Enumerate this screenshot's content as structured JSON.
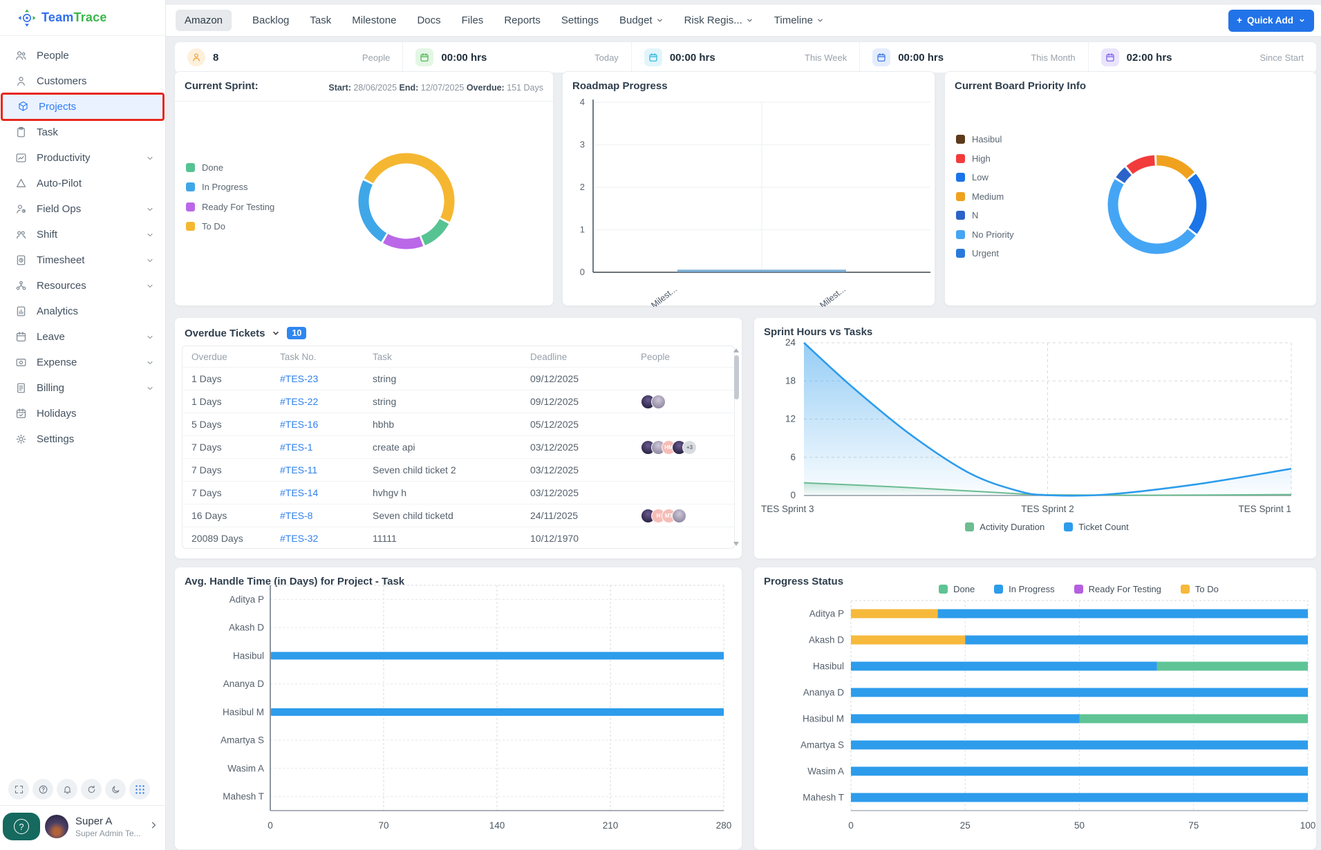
{
  "app": {
    "title": "TeamTrace"
  },
  "sidebar": {
    "brand": {
      "team": "Team",
      "trace": "Trace"
    },
    "items": [
      {
        "label": "People",
        "icon": "people"
      },
      {
        "label": "Customers",
        "icon": "customer"
      },
      {
        "label": "Projects",
        "icon": "projects",
        "active": true,
        "highlight_color": "#e8271c"
      },
      {
        "label": "Task",
        "icon": "task"
      },
      {
        "label": "Productivity",
        "icon": "productivity",
        "chevron": true
      },
      {
        "label": "Auto-Pilot",
        "icon": "autopilot"
      },
      {
        "label": "Field Ops",
        "icon": "fieldops",
        "chevron": true
      },
      {
        "label": "Shift",
        "icon": "shift",
        "chevron": true
      },
      {
        "label": "Timesheet",
        "icon": "timesheet",
        "chevron": true
      },
      {
        "label": "Resources",
        "icon": "resources",
        "chevron": true
      },
      {
        "label": "Analytics",
        "icon": "analytics"
      },
      {
        "label": "Leave",
        "icon": "leave",
        "chevron": true
      },
      {
        "label": "Expense",
        "icon": "expense",
        "chevron": true
      },
      {
        "label": "Billing",
        "icon": "billing",
        "chevron": true
      },
      {
        "label": "Holidays",
        "icon": "holidays"
      },
      {
        "label": "Settings",
        "icon": "settings"
      }
    ],
    "footer_icons": [
      "fullscreen",
      "help",
      "bell",
      "refresh",
      "moon",
      "apps"
    ],
    "user": {
      "name": "Super A",
      "role": "Super Admin Te...",
      "help_badge": "?"
    }
  },
  "topnav": {
    "tabs": [
      {
        "label": "Amazon",
        "active": true
      },
      {
        "label": "Backlog"
      },
      {
        "label": "Task"
      },
      {
        "label": "Milestone"
      },
      {
        "label": "Docs"
      },
      {
        "label": "Files"
      },
      {
        "label": "Reports"
      },
      {
        "label": "Settings"
      },
      {
        "label": "Budget",
        "dropdown": true
      },
      {
        "label": "Risk Regis...",
        "dropdown": true
      },
      {
        "label": "Timeline",
        "dropdown": true
      }
    ],
    "quick_add": {
      "label": "Quick Add"
    }
  },
  "stats": [
    {
      "icon": "person",
      "icon_color": "#ef9f2f",
      "icon_bg": "#fdf0dc",
      "value": "8",
      "label": "People"
    },
    {
      "icon": "calendar",
      "icon_color": "#43b649",
      "icon_bg": "#e4f6e5",
      "value": "00:00 hrs",
      "label": "Today"
    },
    {
      "icon": "calendar",
      "icon_color": "#27b5dc",
      "icon_bg": "#e1f5fb",
      "value": "00:00 hrs",
      "label": "This Week"
    },
    {
      "icon": "calendar",
      "icon_color": "#2f6fe4",
      "icon_bg": "#e4edfd",
      "value": "00:00 hrs",
      "label": "This Month"
    },
    {
      "icon": "calendar",
      "icon_color": "#7a5af0",
      "icon_bg": "#eae5fc",
      "value": "02:00 hrs",
      "label": "Since Start"
    }
  ],
  "sprint_panel": {
    "type": "donut",
    "title": "Current Sprint:",
    "meta": [
      [
        "Start:",
        "28/06/2025"
      ],
      [
        "End:",
        "12/07/2025"
      ],
      [
        "Overdue:",
        "151 Days"
      ]
    ],
    "legend": [
      {
        "label": "Done",
        "color": "#56c392"
      },
      {
        "label": "In Progress",
        "color": "#3fa7e8"
      },
      {
        "label": "Ready For Testing",
        "color": "#ba68e8"
      },
      {
        "label": "To Do",
        "color": "#f5b731"
      }
    ],
    "donut": {
      "start": -63,
      "segments": [
        {
          "label": "To Do",
          "color": "#f5b731",
          "value": 50
        },
        {
          "label": "Done",
          "color": "#56c392",
          "value": 11.5
        },
        {
          "label": "Ready For Testing",
          "color": "#ba68e8",
          "value": 14.5
        },
        {
          "label": "In Progress",
          "color": "#3fa7e8",
          "value": 24
        }
      ]
    }
  },
  "roadmap_panel": {
    "type": "line",
    "title": "Roadmap Progress",
    "y_ticks": [
      0,
      1,
      2,
      3,
      4
    ],
    "x_labels": [
      "Milest...",
      "Milest..."
    ],
    "series": [
      {
        "name": "progress",
        "color": "#7fb0d6",
        "values": [
          0,
          0
        ]
      }
    ]
  },
  "priority_panel": {
    "type": "donut",
    "title": "Current Board Priority Info",
    "legend": [
      {
        "label": "Hasibul",
        "color": "#5d3a1a"
      },
      {
        "label": "High",
        "color": "#f23b3b"
      },
      {
        "label": "Low",
        "color": "#1b74e8"
      },
      {
        "label": "Medium",
        "color": "#f0a11e"
      },
      {
        "label": "N",
        "color": "#2b63c9"
      },
      {
        "label": "No Priority",
        "color": "#45a5f5"
      },
      {
        "label": "Urgent",
        "color": "#2979db"
      }
    ],
    "donut": {
      "start": -2,
      "segments": [
        {
          "label": "Medium",
          "color": "#f0a11e",
          "value": 14.5
        },
        {
          "label": "Low",
          "color": "#1b74e8",
          "value": 21.5
        },
        {
          "label": "No Priority",
          "color": "#45a5f5",
          "value": 48.5
        },
        {
          "label": "N",
          "color": "#2b63c9",
          "value": 5
        },
        {
          "label": "High",
          "color": "#f23b3b",
          "value": 10.5
        }
      ]
    }
  },
  "tickets_panel": {
    "title": "Overdue Tickets",
    "badge": "10",
    "columns": [
      "Overdue",
      "Task No.",
      "Task",
      "Deadline",
      "People"
    ],
    "rows": [
      {
        "overdue": "1 Days",
        "task_no": "#TES-23",
        "task": "string",
        "deadline": "09/12/2025",
        "people": []
      },
      {
        "overdue": "1 Days",
        "task_no": "#TES-22",
        "task": "string",
        "deadline": "09/12/2025",
        "people": [
          {
            "type": "photo"
          },
          {
            "type": "photo2"
          }
        ]
      },
      {
        "overdue": "5 Days",
        "task_no": "#TES-16",
        "task": "hbhb",
        "deadline": "05/12/2025",
        "people": []
      },
      {
        "overdue": "7 Days",
        "task_no": "#TES-1",
        "task": "create api",
        "deadline": "03/12/2025",
        "people": [
          {
            "type": "photo"
          },
          {
            "type": "photo2"
          },
          {
            "type": "initials",
            "text": "HM"
          },
          {
            "type": "photo"
          },
          {
            "type": "more",
            "text": "+3"
          }
        ]
      },
      {
        "overdue": "7 Days",
        "task_no": "#TES-11",
        "task": "Seven child ticket 2",
        "deadline": "03/12/2025",
        "people": []
      },
      {
        "overdue": "7 Days",
        "task_no": "#TES-14",
        "task": "hvhgv h",
        "deadline": "03/12/2025",
        "people": []
      },
      {
        "overdue": "16 Days",
        "task_no": "#TES-8",
        "task": "Seven child ticketd",
        "deadline": "24/11/2025",
        "people": [
          {
            "type": "photo"
          },
          {
            "type": "initials",
            "text": "H"
          },
          {
            "type": "initials",
            "text": "MT"
          },
          {
            "type": "photo2"
          }
        ]
      },
      {
        "overdue": "20089 Days",
        "task_no": "#TES-32",
        "task": "11111",
        "deadline": "10/12/1970",
        "people": []
      }
    ]
  },
  "sprint_hours_panel": {
    "type": "area",
    "title": "Sprint Hours vs Tasks",
    "x_categories": [
      "TES Sprint 3",
      "TES Sprint 2",
      "TES Sprint 1"
    ],
    "y_ticks": [
      0,
      6,
      12,
      18,
      24
    ],
    "series": [
      {
        "name": "Activity Duration",
        "color": "#6dbd8f",
        "values": [
          2,
          0,
          0.15
        ]
      },
      {
        "name": "Ticket Count",
        "color": "#2d9ceb",
        "values": [
          24,
          0,
          4.2
        ]
      }
    ]
  },
  "avg_handle_panel": {
    "type": "bar",
    "title": "Avg. Handle Time (in Days) for Project - Task",
    "categories": [
      "Aditya P",
      "Akash D",
      "Hasibul",
      "Ananya D",
      "Hasibul M",
      "Amartya S",
      "Wasim A",
      "Mahesh T"
    ],
    "values": [
      0,
      0,
      280,
      0,
      280,
      0,
      0,
      0
    ],
    "x_ticks": [
      0,
      70,
      140,
      210,
      280
    ],
    "bar_color": "#2d9ceb"
  },
  "progress_panel": {
    "type": "stacked-bar",
    "title": "Progress Status",
    "legend": [
      {
        "label": "Done",
        "color": "#5fc495"
      },
      {
        "label": "In Progress",
        "color": "#2d9ceb"
      },
      {
        "label": "Ready For Testing",
        "color": "#b55fe0"
      },
      {
        "label": "To Do",
        "color": "#f6b93b"
      }
    ],
    "categories": [
      "Aditya P",
      "Akash D",
      "Hasibul",
      "Ananya D",
      "Hasibul M",
      "Amartya S",
      "Wasim A",
      "Mahesh T"
    ],
    "x_ticks": [
      0,
      25,
      50,
      75,
      100
    ],
    "bars": [
      [
        {
          "key": "To Do",
          "color": "#f6b93b",
          "value": 19
        },
        {
          "key": "In Progress",
          "color": "#2d9ceb",
          "value": 81
        }
      ],
      [
        {
          "key": "To Do",
          "color": "#f6b93b",
          "value": 25
        },
        {
          "key": "In Progress",
          "color": "#2d9ceb",
          "value": 75
        }
      ],
      [
        {
          "key": "In Progress",
          "color": "#2d9ceb",
          "value": 67
        },
        {
          "key": "Done",
          "color": "#5fc495",
          "value": 33
        }
      ],
      [
        {
          "key": "In Progress",
          "color": "#2d9ceb",
          "value": 100
        }
      ],
      [
        {
          "key": "In Progress",
          "color": "#2d9ceb",
          "value": 50
        },
        {
          "key": "Done",
          "color": "#5fc495",
          "value": 50
        }
      ],
      [
        {
          "key": "In Progress",
          "color": "#2d9ceb",
          "value": 100
        }
      ],
      [
        {
          "key": "In Progress",
          "color": "#2d9ceb",
          "value": 100
        }
      ],
      [
        {
          "key": "In Progress",
          "color": "#2d9ceb",
          "value": 100
        }
      ]
    ]
  }
}
